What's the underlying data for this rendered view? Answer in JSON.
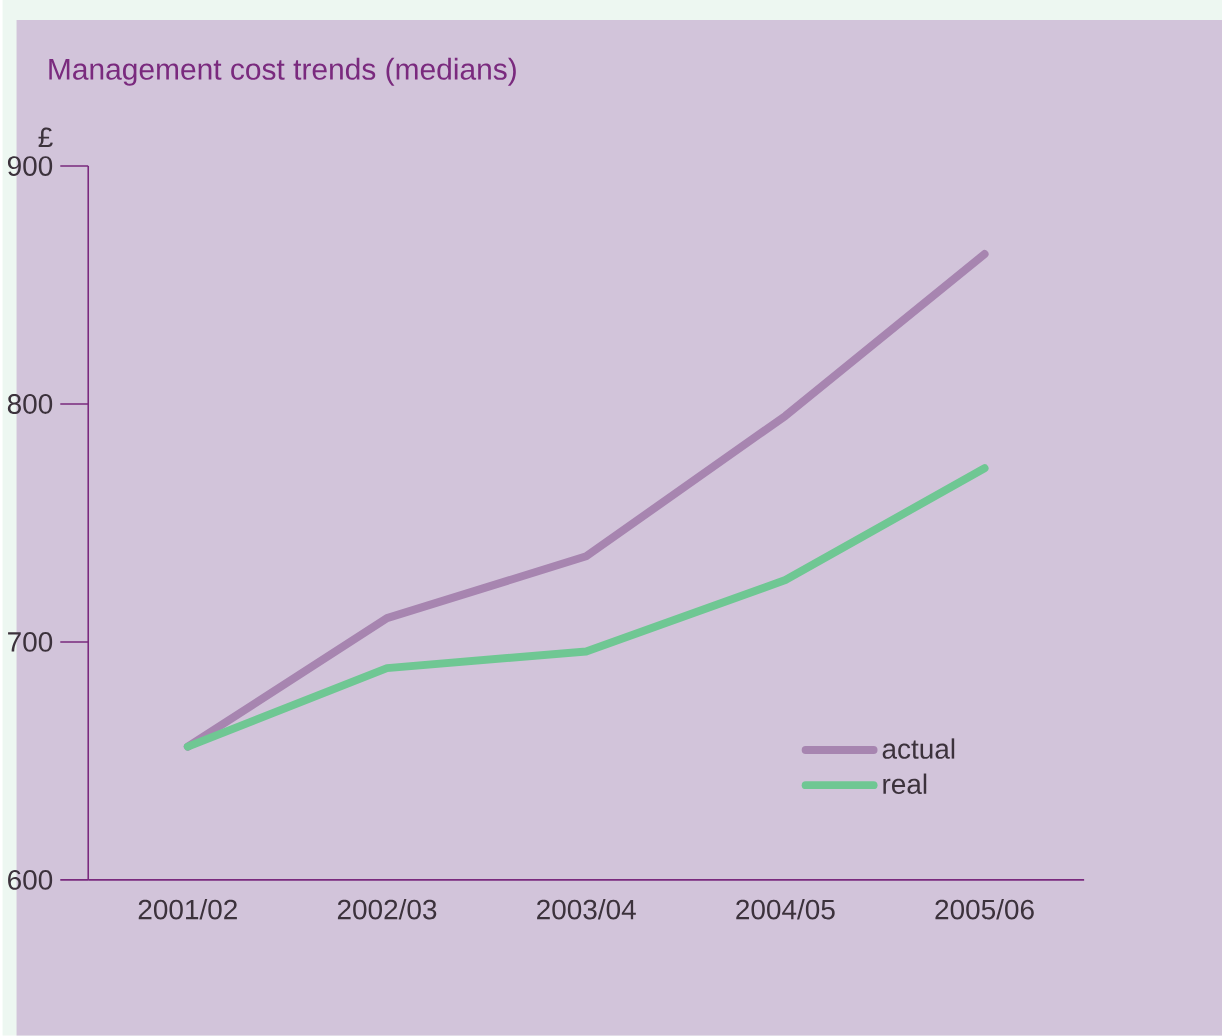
{
  "chart_data": {
    "type": "line",
    "title": "Management cost trends (medians)",
    "ylabel": "£",
    "categories": [
      "2001/02",
      "2002/03",
      "2003/04",
      "2004/05",
      "2005/06"
    ],
    "series": [
      {
        "name": "actual",
        "color": "#a785b0",
        "values": [
          656,
          710,
          736,
          795,
          863
        ]
      },
      {
        "name": "real",
        "color": "#6fc793",
        "values": [
          656,
          689,
          696,
          726,
          773
        ]
      }
    ],
    "ylim": [
      600,
      900
    ],
    "yticks": [
      600,
      700,
      800,
      900
    ],
    "grid": false,
    "legend": "bottom right",
    "marker": "none",
    "line_style": "solid"
  }
}
